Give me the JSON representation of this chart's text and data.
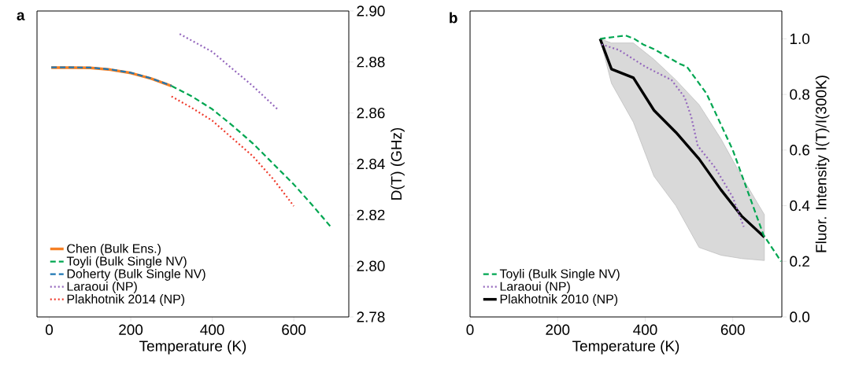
{
  "chart_data": [
    {
      "type": "line",
      "title": "a",
      "xlabel": "Temperature (K)",
      "ylabel": "D(T) (GHz)",
      "xlim": [
        -30,
        735
      ],
      "ylim": [
        2.78,
        2.9
      ],
      "xticks": [
        0,
        200,
        400,
        600
      ],
      "yticks": [
        {
          "value": 2.78,
          "label": "2.78"
        },
        {
          "value": 2.8,
          "label": "2.80"
        },
        {
          "value": 2.82,
          "label": "2.82"
        },
        {
          "value": 2.84,
          "label": "2.84"
        },
        {
          "value": 2.86,
          "label": "2.86"
        },
        {
          "value": 2.88,
          "label": "2.88"
        },
        {
          "value": 2.9,
          "label": "2.90"
        }
      ],
      "legend": "bottom left",
      "series": [
        {
          "name": "Chen (Bulk Ens.)",
          "color": "#f58025",
          "line_style": "solid",
          "x": [
            5,
            50,
            100,
            150,
            200,
            250,
            300
          ],
          "values": [
            2.8778,
            2.8778,
            2.8777,
            2.877,
            2.8757,
            2.8735,
            2.8706
          ]
        },
        {
          "name": "Toyli (Bulk Single NV)",
          "color": "#00a651",
          "line_style": "dashed",
          "x": [
            300,
            350,
            400,
            450,
            500,
            550,
            600,
            650,
            690
          ],
          "values": [
            2.8706,
            2.8665,
            2.8615,
            2.855,
            2.848,
            2.84,
            2.832,
            2.823,
            2.8155
          ]
        },
        {
          "name": "Doherty (Bulk Single NV)",
          "color": "#1f77b4",
          "line_style": "dashed",
          "x": [
            5,
            50,
            100,
            150,
            200,
            250,
            300
          ],
          "values": [
            2.8779,
            2.8779,
            2.8778,
            2.8771,
            2.8758,
            2.8736,
            2.8707
          ]
        },
        {
          "name": "Laraoui (NP)",
          "color": "#9467bd",
          "line_style": "dotted",
          "x": [
            320,
            400,
            500,
            560
          ],
          "values": [
            2.891,
            2.884,
            2.8705,
            2.8615
          ]
        },
        {
          "name": "Plakhotnik 2014 (NP)",
          "color": "#ef3b2c",
          "line_style": "dotted",
          "x": [
            300,
            350,
            400,
            450,
            500,
            550,
            600
          ],
          "values": [
            2.8665,
            2.862,
            2.857,
            2.85,
            2.843,
            2.834,
            2.8235
          ]
        }
      ]
    },
    {
      "type": "line",
      "title": "b",
      "xlabel": "Temperature (K)",
      "ylabel": "Fluor. Intensity I(T)/I(300K)",
      "xlim": [
        0,
        712
      ],
      "ylim": [
        0,
        1.1
      ],
      "xticks": [
        0,
        200,
        400,
        600
      ],
      "yticks": [
        {
          "value": 0,
          "label": "0.0"
        },
        {
          "value": 0.2,
          "label": "0.2"
        },
        {
          "value": 0.4,
          "label": "0.4"
        },
        {
          "value": 0.6,
          "label": "0.6"
        },
        {
          "value": 0.8,
          "label": "0.8"
        },
        {
          "value": 1,
          "label": "1.0"
        }
      ],
      "legend": "bottom left",
      "series": [
        {
          "name": "Toyli (Bulk Single NV)",
          "color": "#00a651",
          "line_style": "dashed",
          "x": [
            297,
            355,
            375,
            395,
            420,
            480,
            495,
            540,
            600,
            670,
            710
          ],
          "values": [
            1.0,
            1.012,
            1.0,
            0.98,
            0.963,
            0.909,
            0.9,
            0.803,
            0.6,
            0.295,
            0.2
          ]
        },
        {
          "name": "Laraoui (NP)",
          "color": "#9467bd",
          "line_style": "dotted",
          "x": [
            300,
            340,
            400,
            460,
            490,
            505,
            520,
            560,
            600,
            625
          ],
          "values": [
            0.98,
            0.96,
            0.9,
            0.852,
            0.79,
            0.72,
            0.615,
            0.536,
            0.43,
            0.324
          ]
        },
        {
          "name": "Plakhotnik 2010 (NP)",
          "color": "#000000",
          "line_style": "solid",
          "x": [
            297,
            323,
            373,
            420,
            470,
            523,
            573,
            620,
            672
          ],
          "values": [
            1.0,
            0.891,
            0.86,
            0.743,
            0.664,
            0.568,
            0.457,
            0.363,
            0.287
          ],
          "lower": [
            1.0,
            0.84,
            0.7,
            0.506,
            0.4,
            0.25,
            0.222,
            0.21,
            0.203
          ],
          "upper": [
            1.0,
            0.985,
            0.985,
            0.926,
            0.852,
            0.763,
            0.64,
            0.506,
            0.368
          ]
        }
      ]
    }
  ]
}
